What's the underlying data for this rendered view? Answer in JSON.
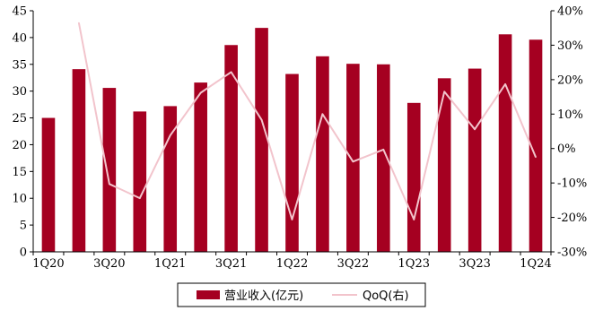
{
  "chart_data": {
    "type": "bar",
    "categories": [
      "1Q20",
      "2Q20",
      "3Q20",
      "4Q20",
      "1Q21",
      "2Q21",
      "3Q21",
      "4Q21",
      "1Q22",
      "2Q22",
      "3Q22",
      "4Q22",
      "1Q23",
      "2Q23",
      "3Q23",
      "4Q23",
      "1Q24"
    ],
    "x_tick_labels": [
      "1Q20",
      "",
      "3Q20",
      "",
      "1Q21",
      "",
      "3Q21",
      "",
      "1Q22",
      "",
      "3Q22",
      "",
      "1Q23",
      "",
      "3Q23",
      "",
      "1Q24"
    ],
    "series": [
      {
        "name": "营业收入(亿元)",
        "type": "bar",
        "axis": "left",
        "color": "#A50021",
        "values": [
          25.0,
          34.1,
          30.6,
          26.2,
          27.2,
          31.6,
          38.6,
          41.8,
          33.2,
          36.5,
          35.1,
          35.0,
          27.8,
          32.4,
          34.2,
          40.6,
          39.6
        ]
      },
      {
        "name": "QoQ(右)",
        "type": "line",
        "axis": "right",
        "color": "#F2C4CC",
        "values": [
          null,
          36.5,
          -10.3,
          -14.4,
          3.8,
          16.2,
          22.2,
          8.3,
          -20.6,
          10.0,
          -3.8,
          -0.3,
          -20.6,
          16.5,
          5.6,
          18.7,
          -2.5
        ]
      }
    ],
    "y_left": {
      "min": 0,
      "max": 45,
      "ticks": [
        0,
        5,
        10,
        15,
        20,
        25,
        30,
        35,
        40,
        45
      ]
    },
    "y_right": {
      "min": -30,
      "max": 40,
      "ticks": [
        -30,
        -20,
        -10,
        0,
        10,
        20,
        30,
        40
      ],
      "unit": "%"
    },
    "legend_position": "bottom",
    "grid": false
  }
}
